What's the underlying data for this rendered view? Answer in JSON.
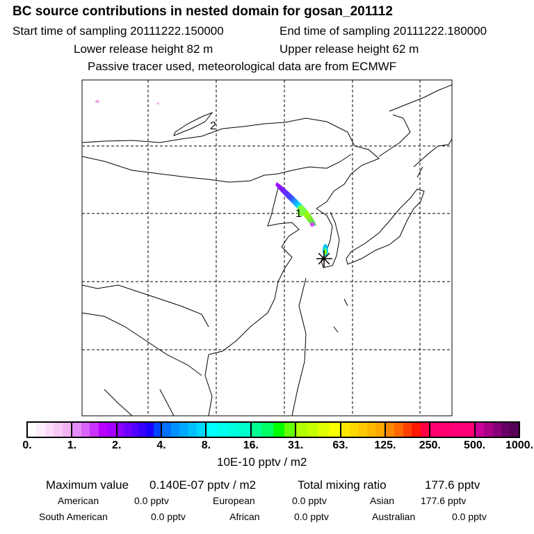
{
  "header": {
    "title": "BC  source contributions in nested domain for gosan_201112",
    "start_label": "Start time of sampling 20111222.150000",
    "end_label": "End time of sampling 20111222.180000",
    "lower_label": "Lower release height   82 m",
    "upper_label": "Upper release height   62 m",
    "note": "Passive tracer used, meteorological data are from ECMWF"
  },
  "map": {
    "markers": [
      "1",
      "2"
    ]
  },
  "colorbar": {
    "ticks": [
      "0.",
      "1.",
      "2.",
      "4.",
      "8.",
      "16.",
      "31.",
      "63.",
      "125.",
      "250.",
      "500.",
      "1000."
    ],
    "unit": "10E-10 pptv / m2",
    "segments": [
      [
        "#ffffff",
        "#fdeefd",
        "#fadcfa",
        "#f6c8f6",
        "#f0b4f4"
      ],
      [
        "#e48cf8",
        "#d864fa",
        "#c832fc",
        "#b800ff",
        "#a400ff"
      ],
      [
        "#8800ff",
        "#6c00ff",
        "#5000ff",
        "#3400ff",
        "#1800ff",
        "#0044ff"
      ],
      [
        "#0070ff",
        "#0090ff",
        "#00a8ff",
        "#00c0ff",
        "#00d8ff"
      ],
      [
        "#00ffff",
        "#00ffec",
        "#00ffdc",
        "#00ffcc"
      ],
      [
        "#00ff90",
        "#00ff64",
        "#00ff00",
        "#64ff00"
      ],
      [
        "#b0ff00",
        "#c8ff00",
        "#e0ff00",
        "#f8ff00"
      ],
      [
        "#ffe800",
        "#ffd800",
        "#ffc800",
        "#ffb800",
        "#ffa800"
      ],
      [
        "#ff8800",
        "#ff6800",
        "#ff4000",
        "#ff1800",
        "#ff0044"
      ],
      [
        "#ff0070",
        "#ff0078"
      ],
      [
        "#cc0099",
        "#aa0088",
        "#880077",
        "#660066",
        "#550055"
      ]
    ]
  },
  "stats": {
    "max_label": "Maximum value",
    "max_value": "0.140E-07 pptv / m2",
    "total_label": "Total mixing ratio",
    "total_value": "177.6 pptv",
    "regions": [
      {
        "label": "American",
        "value": "0.0 pptv"
      },
      {
        "label": "European",
        "value": "0.0 pptv"
      },
      {
        "label": "Asian",
        "value": "177.6 pptv"
      },
      {
        "label": "South American",
        "value": "0.0 pptv"
      },
      {
        "label": "African",
        "value": "0.0 pptv"
      },
      {
        "label": "Australian",
        "value": "0.0 pptv"
      }
    ]
  }
}
